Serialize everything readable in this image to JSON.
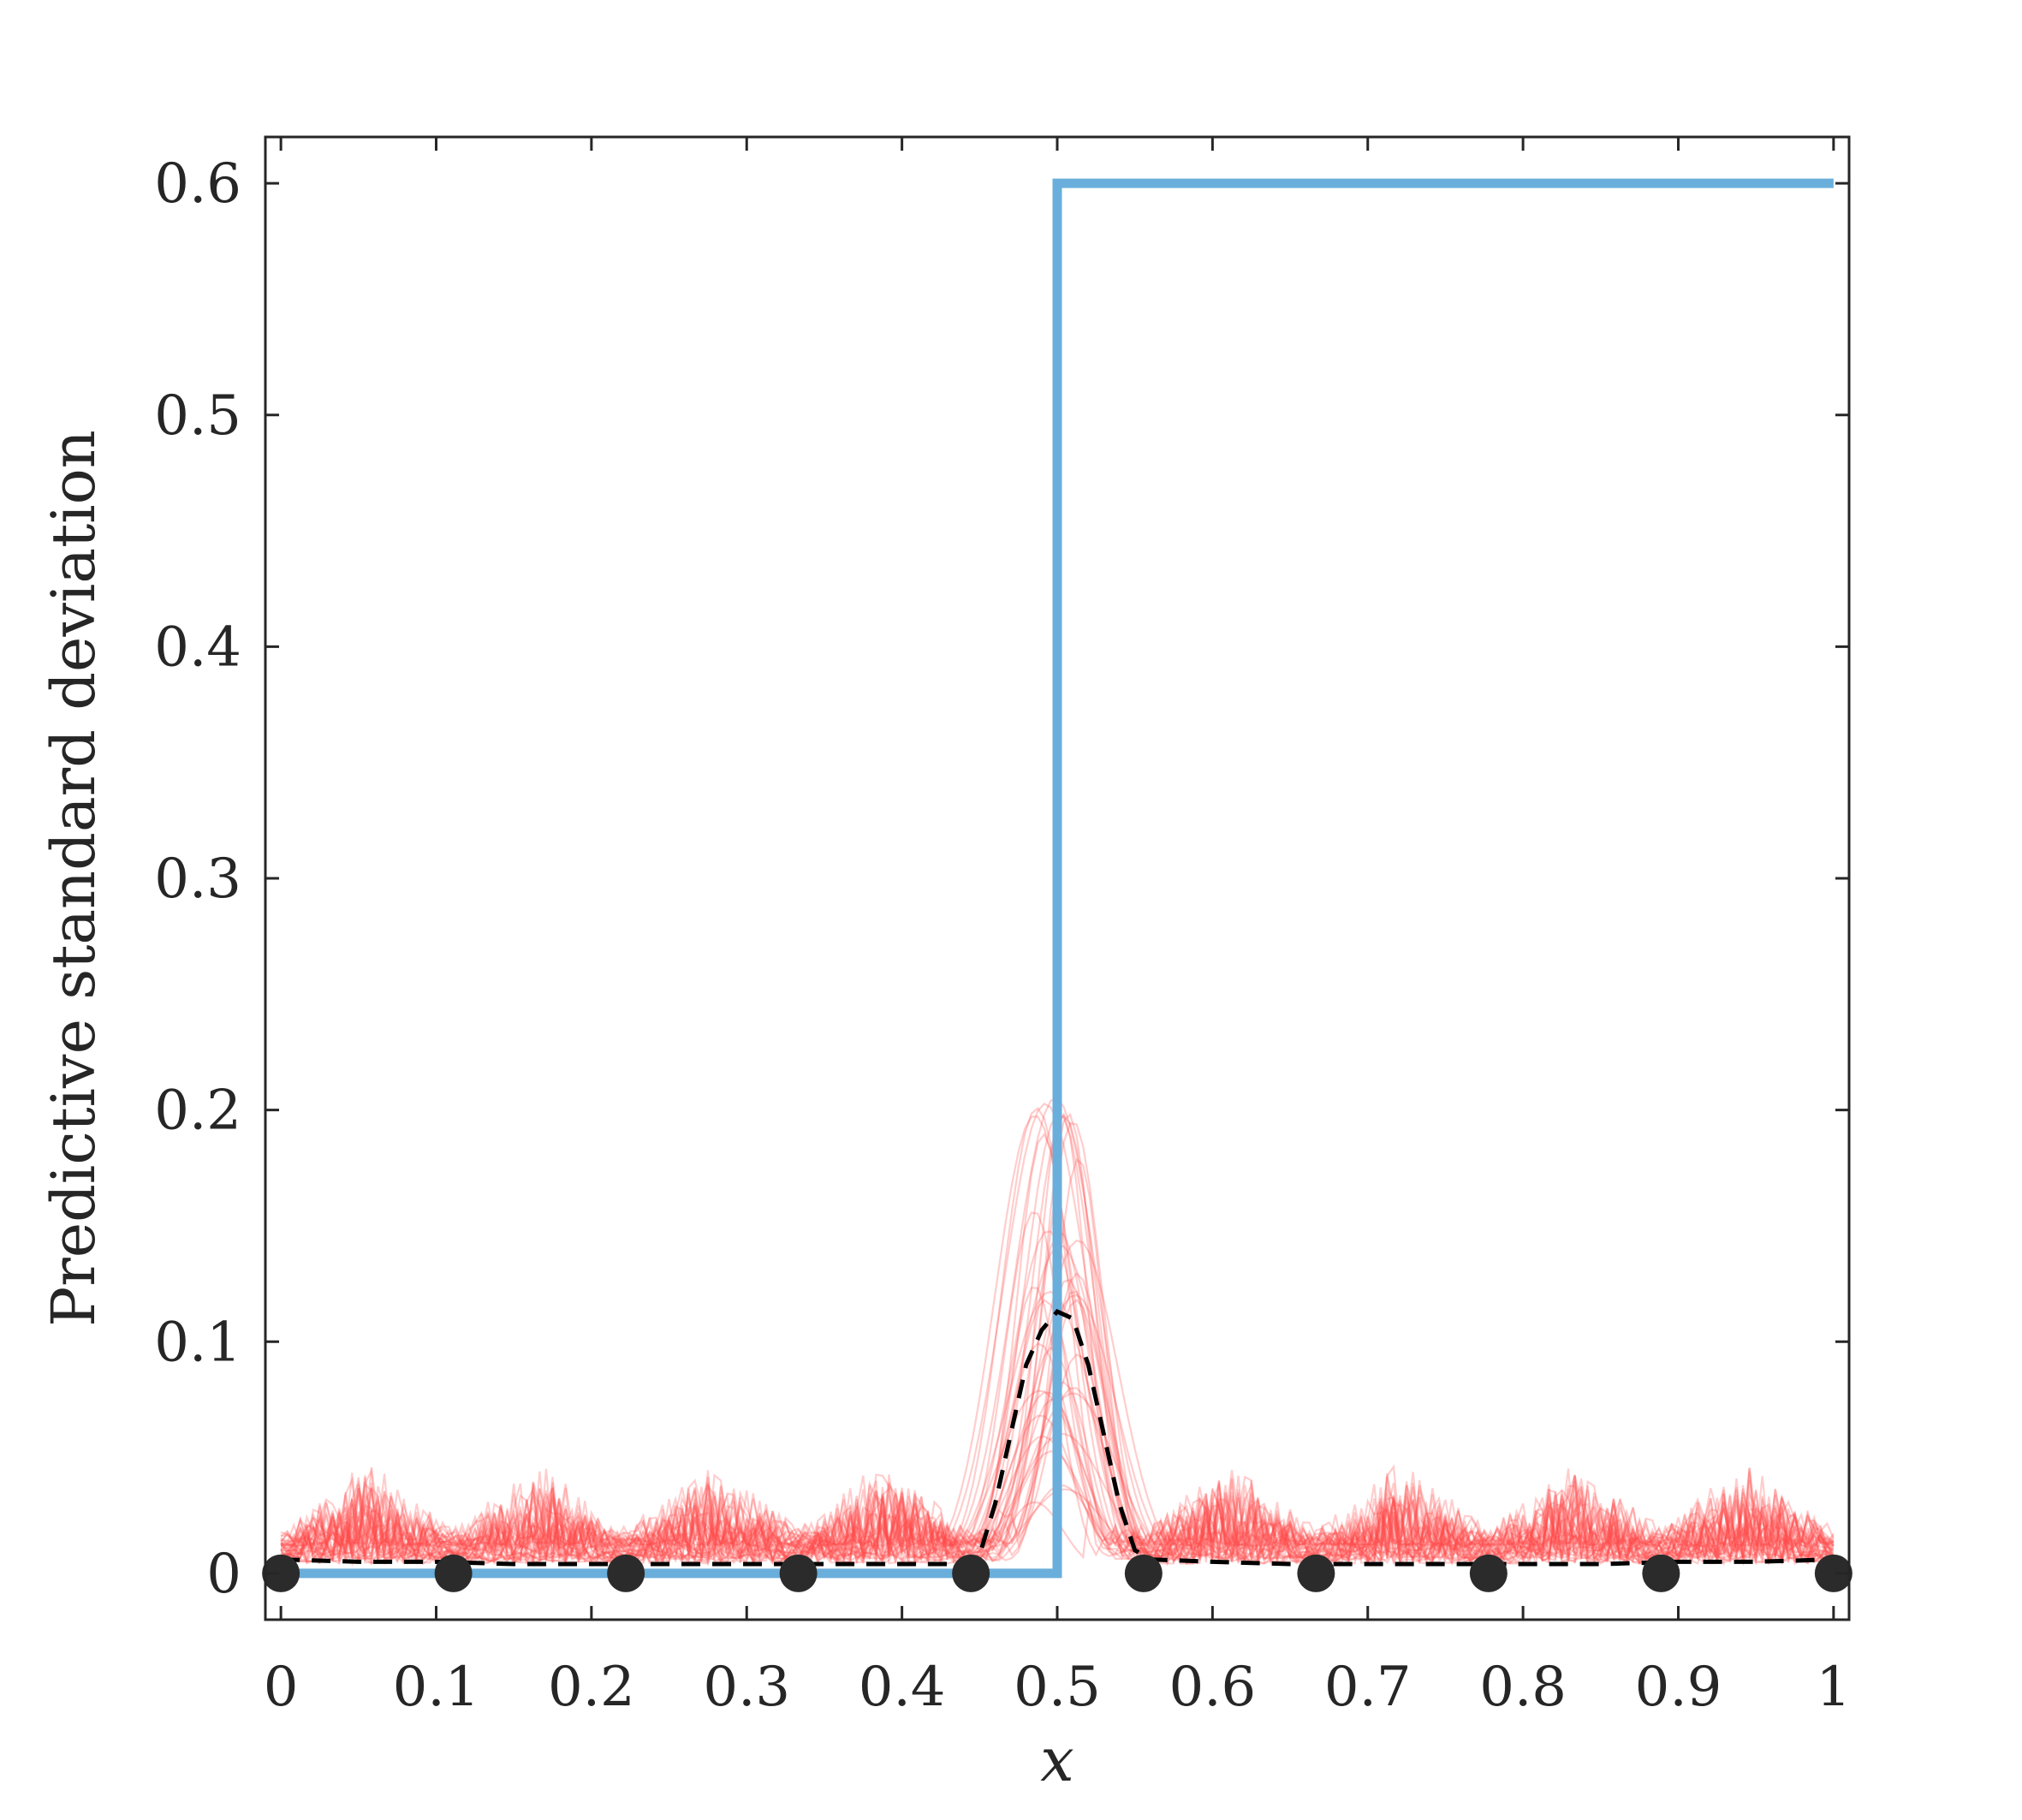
{
  "chart_data": {
    "type": "line",
    "title": "",
    "xlabel": "x",
    "ylabel": "Predictive standard deviation",
    "xlim": [
      -0.01,
      1.01
    ],
    "ylim": [
      -0.02,
      0.62
    ],
    "xticks": [
      0,
      0.1,
      0.2,
      0.3,
      0.4,
      0.5,
      0.6,
      0.7,
      0.8,
      0.9,
      1
    ],
    "xtick_labels": [
      "0",
      "0.1",
      "0.2",
      "0.3",
      "0.4",
      "0.5",
      "0.6",
      "0.7",
      "0.8",
      "0.9",
      "1"
    ],
    "yticks": [
      0,
      0.1,
      0.2,
      0.3,
      0.4,
      0.5,
      0.6
    ],
    "ytick_labels": [
      "0",
      "0.1",
      "0.2",
      "0.3",
      "0.4",
      "0.5",
      "0.6"
    ],
    "grid": false,
    "legend": "none",
    "series": [
      {
        "role": "step-function",
        "color": "#6aaedb",
        "x": [
          0,
          0.5,
          0.5,
          1
        ],
        "y": [
          0,
          0,
          0.6,
          0.6
        ]
      },
      {
        "role": "mean-predictive-std",
        "color": "#000000",
        "style": "dashed",
        "x": [
          0,
          0.05,
          0.1,
          0.15,
          0.2,
          0.25,
          0.3,
          0.35,
          0.4,
          0.44,
          0.45,
          0.46,
          0.47,
          0.48,
          0.49,
          0.5,
          0.51,
          0.52,
          0.53,
          0.54,
          0.55,
          0.56,
          0.6,
          0.65,
          0.7,
          0.75,
          0.8,
          0.85,
          0.9,
          0.95,
          1
        ],
        "y": [
          0.006,
          0.005,
          0.005,
          0.004,
          0.004,
          0.004,
          0.004,
          0.004,
          0.004,
          0.004,
          0.008,
          0.03,
          0.06,
          0.09,
          0.105,
          0.113,
          0.11,
          0.09,
          0.06,
          0.03,
          0.01,
          0.006,
          0.005,
          0.004,
          0.004,
          0.004,
          0.004,
          0.004,
          0.005,
          0.005,
          0.006
        ]
      },
      {
        "role": "ensemble-members",
        "color": "#ff4d4d",
        "count": 40,
        "baseline_range": [
          0.0,
          0.07
        ],
        "peak_range": [
          0.03,
          0.21
        ],
        "peak_center": 0.5
      }
    ],
    "points": {
      "color": "#2b2b2b",
      "x": [
        0,
        0.1111,
        0.2222,
        0.3333,
        0.4444,
        0.5556,
        0.6667,
        0.7778,
        0.8889,
        1
      ],
      "y": [
        0,
        0,
        0,
        0,
        0,
        0,
        0,
        0,
        0,
        0
      ]
    }
  }
}
